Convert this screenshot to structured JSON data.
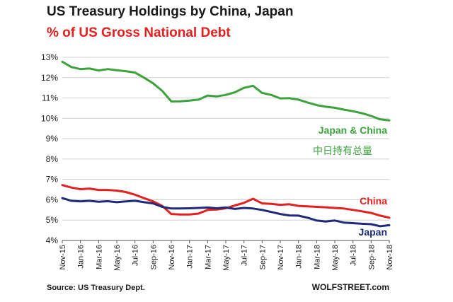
{
  "title": "US Treasury Holdings  by China, Japan",
  "subtitle": "% of US Gross National Debt",
  "source": "Source: US Treasury Dept.",
  "brand": "WOLFSTREET.com",
  "chart_data": {
    "type": "line",
    "x": [
      "Nov-15",
      "Dec-15",
      "Jan-16",
      "Feb-16",
      "Mar-16",
      "Apr-16",
      "May-16",
      "Jun-16",
      "Jul-16",
      "Aug-16",
      "Sep-16",
      "Oct-16",
      "Nov-16",
      "Dec-16",
      "Jan-17",
      "Feb-17",
      "Mar-17",
      "Apr-17",
      "May-17",
      "Jun-17",
      "Jul-17",
      "Aug-17",
      "Sep-17",
      "Oct-17",
      "Nov-17",
      "Dec-17",
      "Jan-18",
      "Feb-18",
      "Mar-18",
      "Apr-18",
      "May-18",
      "Jun-18",
      "Jul-18",
      "Aug-18",
      "Sep-18",
      "Oct-18",
      "Nov-18"
    ],
    "x_tick_labels": [
      "Nov-15",
      "Jan-16",
      "Mar-16",
      "May-16",
      "Jul-16",
      "Sep-16",
      "Nov-16",
      "Jan-17",
      "Mar-17",
      "May-17",
      "Jul-17",
      "Sep-17",
      "Nov-17",
      "Jan-18",
      "Mar-18",
      "May-18",
      "Jul-18",
      "Sep-18",
      "Nov-18"
    ],
    "y_tick_labels": [
      "4%",
      "5%",
      "6%",
      "7%",
      "8%",
      "9%",
      "10%",
      "11%",
      "12%",
      "13%"
    ],
    "ylim": [
      4,
      13
    ],
    "grid": "horizontal",
    "colors": {
      "japan_china": "#3ca23c",
      "china": "#e41f1f",
      "japan": "#1f2a7a"
    },
    "series": [
      {
        "name": "Japan & China",
        "name_cn": "中日持有总量",
        "color": "#3ca23c",
        "values": [
          12.78,
          12.52,
          12.42,
          12.45,
          12.35,
          12.42,
          12.36,
          12.32,
          12.25,
          12.0,
          11.72,
          11.35,
          10.83,
          10.84,
          10.87,
          10.92,
          11.12,
          11.08,
          11.15,
          11.28,
          11.5,
          11.6,
          11.25,
          11.15,
          10.98,
          10.99,
          10.92,
          10.78,
          10.65,
          10.57,
          10.52,
          10.43,
          10.35,
          10.25,
          10.12,
          9.95,
          9.9
        ]
      },
      {
        "name": "China",
        "color": "#e41f1f",
        "values": [
          6.72,
          6.6,
          6.52,
          6.55,
          6.48,
          6.48,
          6.45,
          6.38,
          6.25,
          6.08,
          5.92,
          5.7,
          5.3,
          5.28,
          5.28,
          5.32,
          5.5,
          5.52,
          5.58,
          5.72,
          5.85,
          6.05,
          5.82,
          5.8,
          5.75,
          5.78,
          5.7,
          5.68,
          5.65,
          5.63,
          5.6,
          5.57,
          5.5,
          5.43,
          5.35,
          5.22,
          5.12
        ]
      },
      {
        "name": "Japan",
        "color": "#1f2a7a",
        "values": [
          6.08,
          5.95,
          5.92,
          5.95,
          5.9,
          5.93,
          5.88,
          5.92,
          5.95,
          5.88,
          5.82,
          5.65,
          5.57,
          5.57,
          5.58,
          5.6,
          5.62,
          5.58,
          5.62,
          5.55,
          5.6,
          5.57,
          5.5,
          5.4,
          5.3,
          5.23,
          5.22,
          5.12,
          4.98,
          4.93,
          4.98,
          4.88,
          4.85,
          4.82,
          4.8,
          4.7,
          4.75
        ]
      }
    ]
  }
}
